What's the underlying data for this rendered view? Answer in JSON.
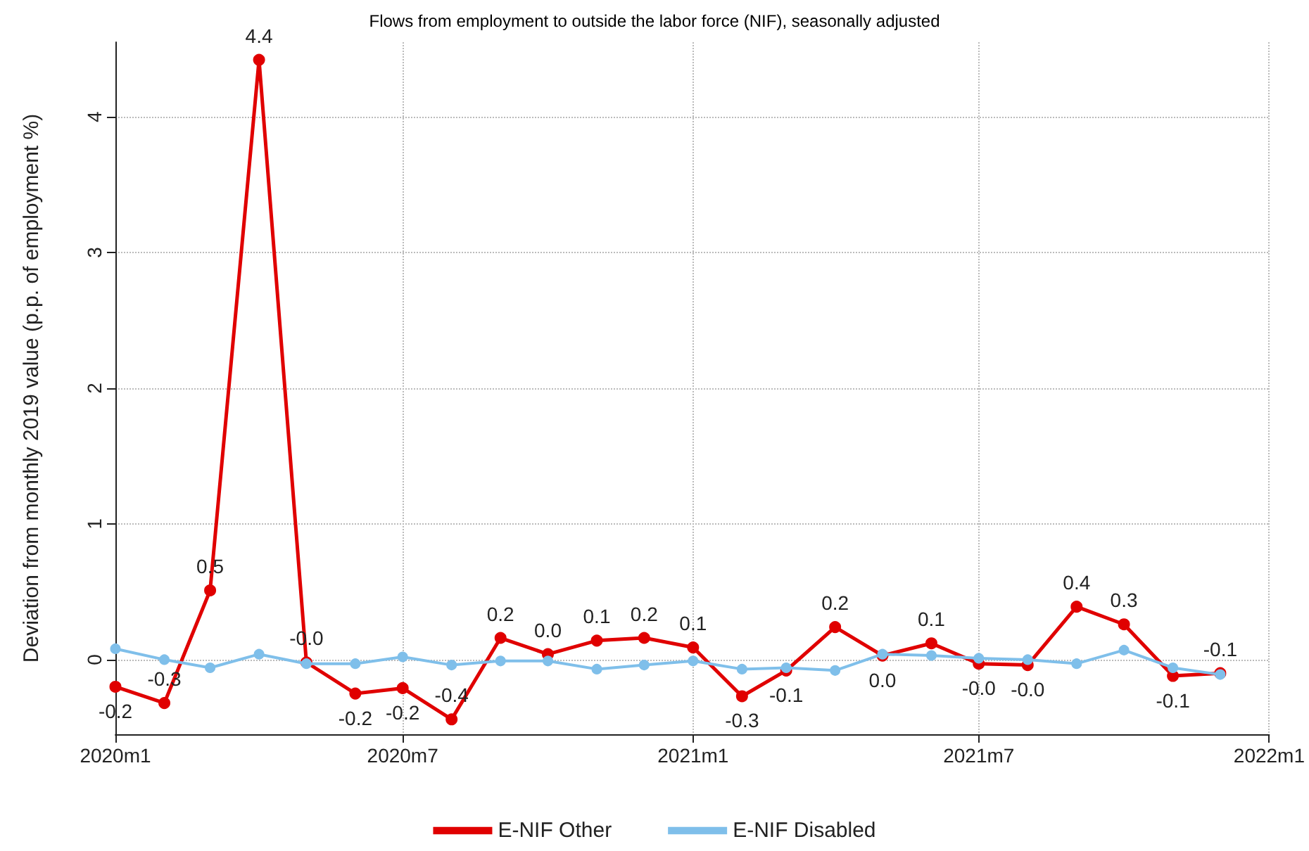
{
  "chart_data": {
    "type": "line",
    "title": "Flows from employment to outside the labor force (NIF), seasonally adjusted",
    "ylabel": "Deviation from monthly 2019 value (p.p. of employment %)",
    "x": [
      "2020-01",
      "2020-02",
      "2020-03",
      "2020-04",
      "2020-05",
      "2020-06",
      "2020-07",
      "2020-08",
      "2020-09",
      "2020-10",
      "2020-11",
      "2020-12",
      "2021-01",
      "2021-02",
      "2021-03",
      "2021-04",
      "2021-05",
      "2021-06",
      "2021-07",
      "2021-08",
      "2021-09",
      "2021-10",
      "2021-11",
      "2021-12"
    ],
    "xlim": [
      "2020-01",
      "2022-01"
    ],
    "xticks": [
      {
        "value": "2020-01",
        "label": "2020m1"
      },
      {
        "value": "2020-07",
        "label": "2020m7"
      },
      {
        "value": "2021-01",
        "label": "2021m1"
      },
      {
        "value": "2021-07",
        "label": "2021m7"
      },
      {
        "value": "2022-01",
        "label": "2022m1"
      }
    ],
    "ylim": [
      -0.55,
      4.55
    ],
    "yticks": [
      0,
      1,
      2,
      3,
      4
    ],
    "grid": true,
    "legend": "bottom",
    "marker": "circle",
    "line_style": "solid",
    "series": [
      {
        "name": "E-NIF Other",
        "color": "#e00000",
        "values": [
          -0.2,
          -0.32,
          0.51,
          4.42,
          -0.02,
          -0.25,
          -0.21,
          -0.44,
          0.16,
          0.04,
          0.14,
          0.16,
          0.09,
          -0.27,
          -0.08,
          0.24,
          0.03,
          0.12,
          -0.03,
          -0.04,
          0.39,
          0.26,
          -0.12,
          -0.1
        ],
        "value_labels": [
          "-0.2",
          "-0.3",
          "0.5",
          "4.4",
          "-0.0",
          "-0.2",
          "-0.2",
          "-0.4",
          "0.2",
          "0.0",
          "0.1",
          "0.2",
          "0.1",
          "-0.3",
          "-0.1",
          "0.2",
          "0.0",
          "0.1",
          "-0.0",
          "-0.0",
          "0.4",
          "0.3",
          "-0.1",
          "-0.1"
        ]
      },
      {
        "name": "E-NIF Disabled",
        "color": "#7fbfea",
        "values": [
          0.08,
          0.0,
          -0.06,
          0.04,
          -0.03,
          -0.03,
          0.02,
          -0.04,
          -0.01,
          -0.01,
          -0.07,
          -0.04,
          -0.01,
          -0.07,
          -0.06,
          -0.08,
          0.04,
          0.03,
          0.01,
          0.0,
          -0.03,
          0.07,
          -0.06,
          -0.11
        ]
      }
    ]
  }
}
